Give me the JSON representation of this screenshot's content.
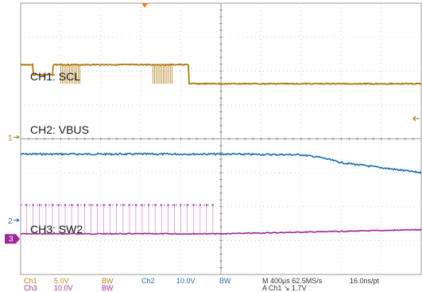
{
  "chart_data": {
    "type": "line",
    "title": "",
    "xlabel": "",
    "ylabel": "",
    "grid": true,
    "divisions": {
      "x": 10,
      "y": 8
    },
    "colors": {
      "ch1": "#b07a10",
      "ch2": "#1f6fb2",
      "ch3": "#a0279a",
      "trigger": "#f08020"
    },
    "series": [
      {
        "name": "CH1: SCL",
        "marker": "1",
        "ground_div": 3.2,
        "levels": [
          [
            0.0,
            4.2
          ],
          [
            0.3,
            4.2
          ],
          [
            0.3,
            3.3
          ],
          [
            0.8,
            3.3
          ],
          [
            0.8,
            4.2
          ],
          [
            4.2,
            4.2
          ],
          [
            4.2,
            2.5
          ],
          [
            10.0,
            2.5
          ]
        ],
        "bursts": [
          [
            0.3,
            0.8
          ],
          [
            2.6,
            3.1
          ]
        ]
      },
      {
        "name": "CH2: VBUS",
        "marker": "2",
        "ground_div": 5.9,
        "points": [
          [
            -5.0,
            4.2
          ],
          [
            0.0,
            4.2
          ],
          [
            2.0,
            4.18
          ],
          [
            2.5,
            4.1
          ],
          [
            3.0,
            3.95
          ],
          [
            4.0,
            3.8
          ],
          [
            5.0,
            3.65
          ]
        ]
      },
      {
        "name": "CH3: SW2",
        "marker": "3",
        "ground_div": 6.8,
        "points": [
          [
            -5.0,
            0.0
          ],
          [
            0.0,
            0.0
          ],
          [
            5.0,
            0.12
          ]
        ],
        "pulses": {
          "start_div": 0.15,
          "end_div": 4.8,
          "count": 30,
          "height_div": 0.85
        }
      }
    ],
    "trigger_div": 1.3,
    "readouts": {
      "ch1": "Ch1",
      "ch1_scale": "5.0V",
      "ch1_bw": "BW",
      "ch2": "Ch2",
      "ch2_scale": "10.0V",
      "ch2_bw": "BW",
      "ch3": "Ch3",
      "ch3_scale": "10.0V",
      "ch3_bw": "BW",
      "timebase": "M 400µs 62.5MS/s",
      "record": "16.0ns/pt",
      "trigger": "A  Ch1  ↘  1.7V"
    }
  }
}
